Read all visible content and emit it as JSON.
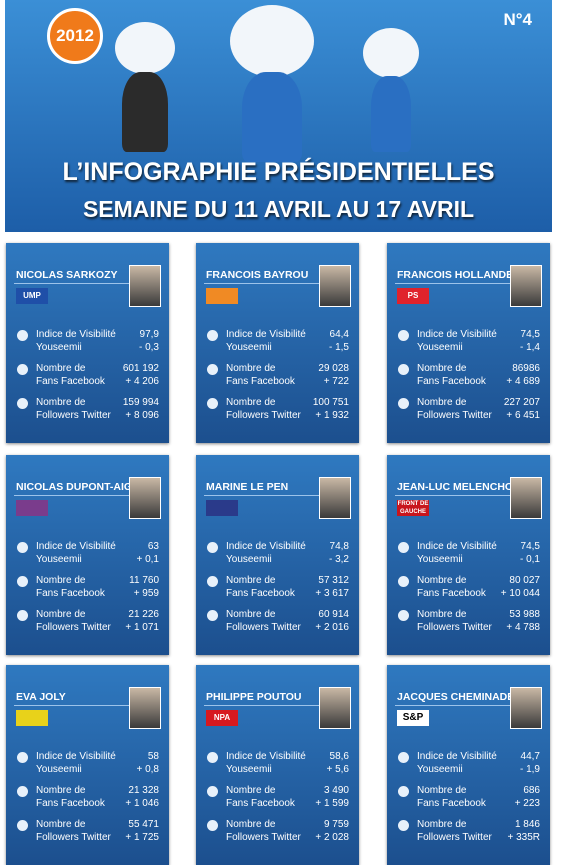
{
  "header": {
    "badge": "2012",
    "number": "N°4",
    "title": [
      "L’INFOGRAPHIE PRÉSIDENTIELLES",
      "SEMAINE DU 11 AVRIL AU 17 AVRIL"
    ]
  },
  "labels": {
    "visibility": [
      "Indice de Visibilité",
      "Youseemii"
    ],
    "facebook": [
      "Nombre de",
      "Fans Facebook"
    ],
    "twitter": [
      "Nombre de",
      "Followers Twitter"
    ]
  },
  "candidates": [
    {
      "name": "NICOLAS SARKOZY",
      "logo": "UMP",
      "logo_color": "#1f4fa8",
      "visibility": [
        "97,9",
        "- 0,3"
      ],
      "facebook": [
        "601 192",
        "+ 4 206"
      ],
      "twitter": [
        "159 994",
        "+ 8 096"
      ]
    },
    {
      "name": "FRANCOIS BAYROU",
      "logo_color": "#f08a24",
      "visibility": [
        "64,4",
        "- 1,5"
      ],
      "facebook": [
        "29 028",
        "+ 722"
      ],
      "twitter": [
        "100 751",
        "+ 1 932"
      ]
    },
    {
      "name": "FRANCOIS HOLLANDE",
      "logo": "PS",
      "logo_color": "#e0232c",
      "visibility": [
        "74,5",
        "- 1,4"
      ],
      "facebook": [
        "86986",
        "+ 4 689"
      ],
      "twitter": [
        "227 207",
        "+ 6 451"
      ]
    },
    {
      "name": "NICOLAS DUPONT-AIGNAN",
      "logo_color": "#7a3c8c",
      "visibility": [
        "63",
        "+ 0,1"
      ],
      "facebook": [
        "11 760",
        "+ 959"
      ],
      "twitter": [
        "21 226",
        "+ 1 071"
      ]
    },
    {
      "name": "MARINE LE PEN",
      "logo_color": "#2a3a8a",
      "visibility": [
        "74,8",
        "- 3,2"
      ],
      "facebook": [
        "57 312",
        "+ 3 617"
      ],
      "twitter": [
        "60 914",
        "+ 2 016"
      ]
    },
    {
      "name": "JEAN-LUC MELENCHON",
      "logo": "FRONT DE GAUCHE",
      "logo_color": "#c8161d",
      "visibility": [
        "74,5",
        "- 0,1"
      ],
      "facebook": [
        "80 027",
        "+ 10 044"
      ],
      "twitter": [
        "53 988",
        "+ 4 788"
      ]
    },
    {
      "name": "EVA JOLY",
      "logo_color": "#e8d21a",
      "visibility": [
        "58",
        "+ 0,8"
      ],
      "facebook": [
        "21 328",
        "+ 1 046"
      ],
      "twitter": [
        "55 471",
        "+ 1 725"
      ]
    },
    {
      "name": "PHILIPPE POUTOU",
      "logo": "NPA",
      "logo_color": "#d7191f",
      "visibility": [
        "58,6",
        "+ 5,6"
      ],
      "facebook": [
        "3 490",
        "+ 1 599"
      ],
      "twitter": [
        "9 759",
        "+ 2 028"
      ]
    },
    {
      "name": "JACQUES CHEMINADE",
      "logo": "S&P",
      "logo_color": "#ffffff",
      "visibility": [
        "44,7",
        "- 1,9"
      ],
      "facebook": [
        "686",
        "+ 223"
      ],
      "twitter": [
        "1 846",
        "+ 335R"
      ]
    }
  ]
}
